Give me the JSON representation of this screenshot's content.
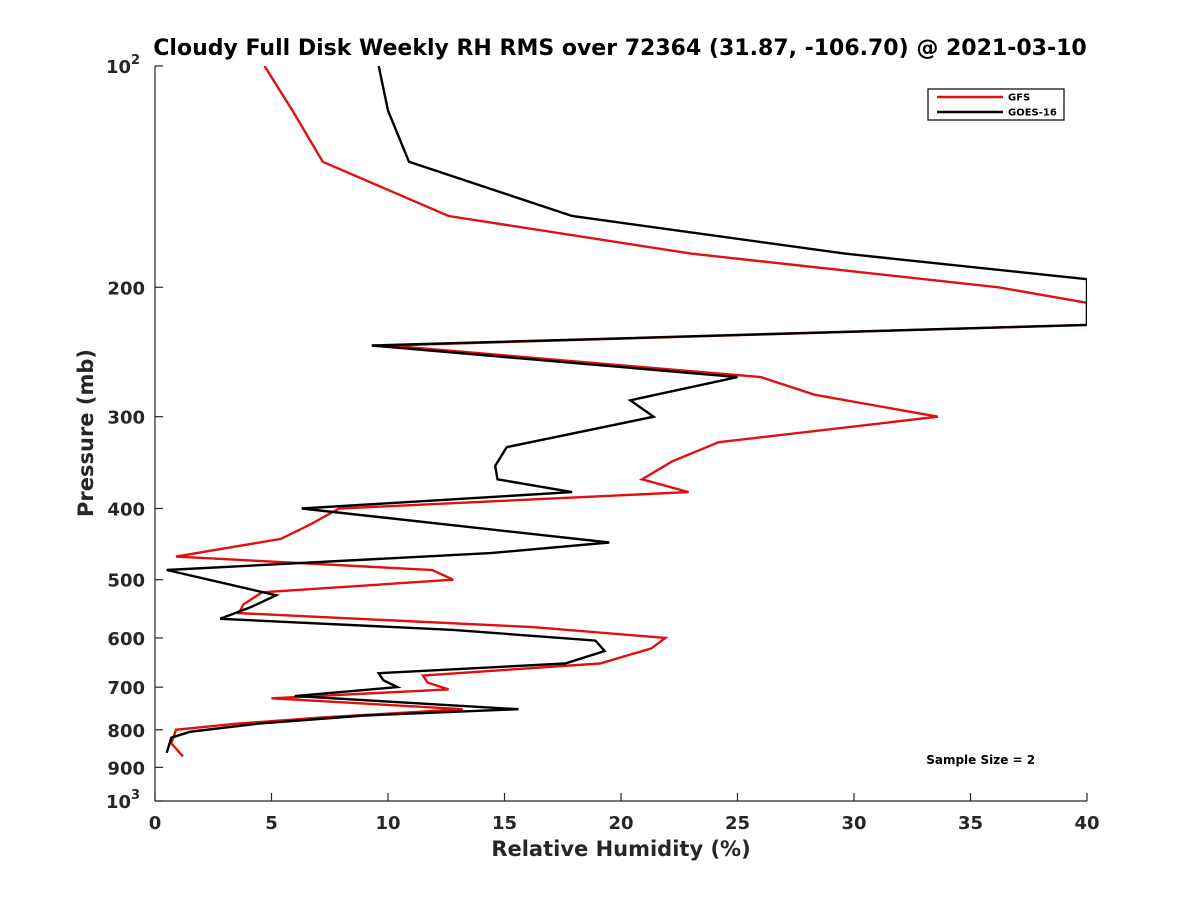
{
  "chart_data": {
    "type": "line",
    "title": "Cloudy Full Disk Weekly RH RMS over 72364 (31.87, -106.70) @ 2021-03-10",
    "xlabel": "Relative Humidity (%)",
    "ylabel": "Pressure (mb)",
    "xlim": [
      0,
      40
    ],
    "ylim": [
      100,
      1000
    ],
    "y_scale": "log",
    "y_reversed": true,
    "grid": false,
    "legend_position": "top-right",
    "x_ticks": [
      0,
      5,
      10,
      15,
      20,
      25,
      30,
      35,
      40
    ],
    "y_ticks": [
      {
        "value": 100,
        "base": "10",
        "exp": "2"
      },
      {
        "value": 200,
        "label": "200"
      },
      {
        "value": 300,
        "label": "300"
      },
      {
        "value": 400,
        "label": "400"
      },
      {
        "value": 500,
        "label": "500"
      },
      {
        "value": 600,
        "label": "600"
      },
      {
        "value": 700,
        "label": "700"
      },
      {
        "value": 800,
        "label": "800"
      },
      {
        "value": 900,
        "label": "900"
      },
      {
        "value": 1000,
        "base": "10",
        "exp": "3"
      }
    ],
    "series": [
      {
        "name": "GFS",
        "color": "#e0100e",
        "points": [
          [
            4.7,
            100
          ],
          [
            5.9,
            115
          ],
          [
            7.2,
            135
          ],
          [
            12.6,
            160
          ],
          [
            23.0,
            180
          ],
          [
            36.2,
            200
          ],
          [
            40.0,
            210
          ],
          [
            40.0,
            225
          ],
          [
            10.0,
            240
          ],
          [
            26.0,
            265
          ],
          [
            28.3,
            280
          ],
          [
            33.6,
            300
          ],
          [
            24.2,
            325
          ],
          [
            22.2,
            345
          ],
          [
            20.9,
            365
          ],
          [
            22.9,
            380
          ],
          [
            7.9,
            400
          ],
          [
            6.7,
            420
          ],
          [
            5.4,
            440
          ],
          [
            0.9,
            465
          ],
          [
            11.9,
            485
          ],
          [
            12.8,
            500
          ],
          [
            4.6,
            520
          ],
          [
            3.8,
            540
          ],
          [
            3.6,
            555
          ],
          [
            16.2,
            580
          ],
          [
            21.9,
            600
          ],
          [
            21.3,
            620
          ],
          [
            19.1,
            650
          ],
          [
            11.5,
            675
          ],
          [
            11.7,
            690
          ],
          [
            12.6,
            705
          ],
          [
            5.0,
            725
          ],
          [
            13.2,
            750
          ],
          [
            7.1,
            770
          ],
          [
            3.5,
            785
          ],
          [
            0.9,
            800
          ],
          [
            0.7,
            835
          ],
          [
            1.2,
            870
          ]
        ]
      },
      {
        "name": "GOES-16",
        "color": "#000000",
        "points": [
          [
            9.6,
            100
          ],
          [
            10.0,
            115
          ],
          [
            10.9,
            135
          ],
          [
            17.9,
            160
          ],
          [
            29.6,
            180
          ],
          [
            40.0,
            195
          ],
          [
            40.0,
            225
          ],
          [
            9.3,
            240
          ],
          [
            25.0,
            265
          ],
          [
            20.4,
            285
          ],
          [
            21.4,
            300
          ],
          [
            15.1,
            330
          ],
          [
            14.6,
            350
          ],
          [
            14.7,
            365
          ],
          [
            17.9,
            380
          ],
          [
            6.3,
            400
          ],
          [
            19.5,
            445
          ],
          [
            14.4,
            460
          ],
          [
            0.5,
            485
          ],
          [
            5.2,
            525
          ],
          [
            4.1,
            545
          ],
          [
            2.8,
            565
          ],
          [
            12.8,
            585
          ],
          [
            18.9,
            605
          ],
          [
            19.3,
            625
          ],
          [
            17.6,
            650
          ],
          [
            9.6,
            670
          ],
          [
            9.8,
            685
          ],
          [
            10.4,
            700
          ],
          [
            6.0,
            720
          ],
          [
            15.6,
            750
          ],
          [
            9.0,
            765
          ],
          [
            4.4,
            785
          ],
          [
            1.5,
            805
          ],
          [
            0.7,
            820
          ],
          [
            0.5,
            860
          ]
        ]
      }
    ],
    "annotations": [
      {
        "text": "Sample Size = 2",
        "x": 33.1,
        "y": 890
      }
    ]
  }
}
